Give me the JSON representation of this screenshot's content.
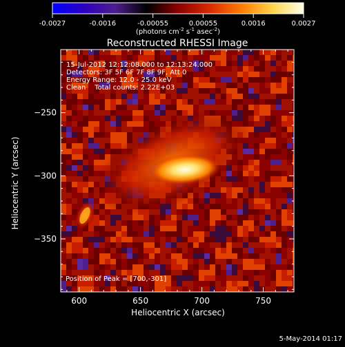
{
  "colorbar": {
    "ticks": [
      "-0.0027",
      "-0.0016",
      "-0.00055",
      "0.00055",
      "0.0016",
      "0.0027"
    ],
    "units_main": "(photons cm",
    "units_exp1": "-2",
    "units_mid": " s",
    "units_exp2": "-1",
    "units_end": " asec",
    "units_exp3": "-2",
    "units_close": ")",
    "colormap": [
      "#0000ff",
      "#2c00c0",
      "#4d1e8c",
      "#000000",
      "#8b0000",
      "#d82a00",
      "#ff7a00",
      "#ffd24a",
      "#ffffe8"
    ]
  },
  "plot": {
    "title": "Reconstructed RHESSI Image",
    "info_lines": [
      "15-Jul-2012 12:12:08.000 to 12:13:24.000",
      "Detectors: 3F 5F 6F 7F 8F 9F, Att 0",
      "Energy Range: 12.0 - 25.0 keV",
      "Clean    Total counts: 2.22E+03"
    ],
    "peak_label": "Position of Peak = [700,-301]",
    "xlabel": "Heliocentric X (arcsec)",
    "ylabel": "Heliocentric Y (arcsec)",
    "xticks": [
      600,
      650,
      700,
      750
    ],
    "yticks": [
      -250,
      -300,
      -350
    ],
    "xrange": [
      585,
      775
    ],
    "yrange": [
      -392,
      -200
    ],
    "peak": [
      700,
      -301
    ]
  },
  "footer": {
    "date": "5-May-2014 01:17"
  }
}
